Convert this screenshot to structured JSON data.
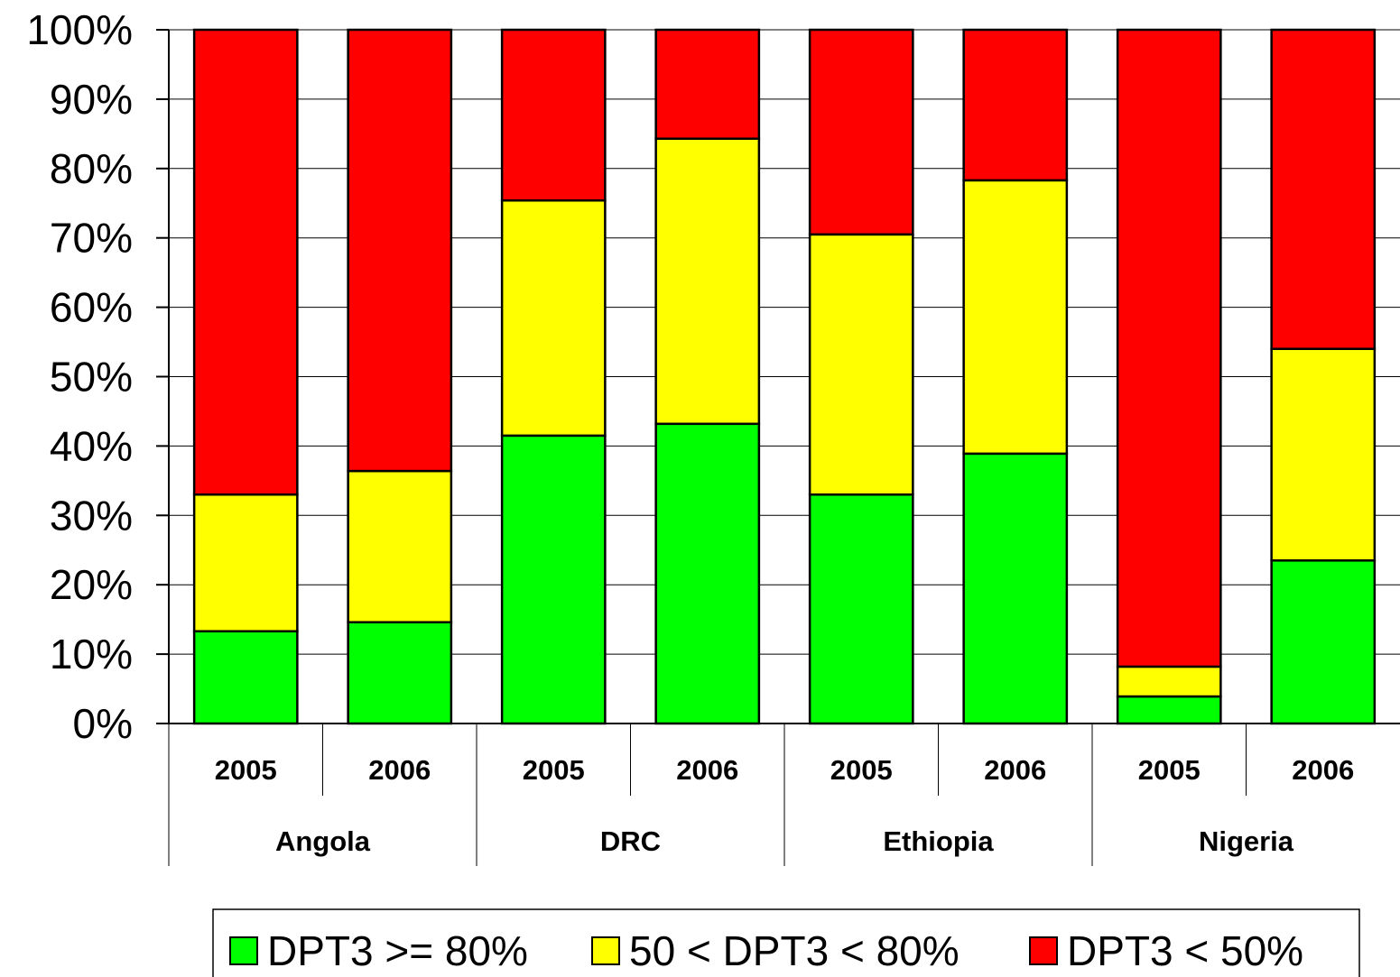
{
  "chart_data": {
    "type": "bar",
    "stacked": true,
    "percent_stacked": true,
    "groups": [
      {
        "name": "Angola",
        "categories": [
          "2005",
          "2006"
        ]
      },
      {
        "name": "DRC",
        "categories": [
          "2005",
          "2006"
        ]
      },
      {
        "name": "Ethiopia",
        "categories": [
          "2005",
          "2006"
        ]
      },
      {
        "name": "Nigeria",
        "categories": [
          "2005",
          "2006"
        ]
      }
    ],
    "categories": [
      "2005",
      "2006",
      "2005",
      "2006",
      "2005",
      "2006",
      "2005",
      "2006"
    ],
    "series": [
      {
        "name": "DPT3 >= 80%",
        "color": "#00ff00",
        "values": [
          13.3,
          14.6,
          41.5,
          43.2,
          33.0,
          38.9,
          3.9,
          23.5
        ]
      },
      {
        "name": "50 < DPT3 < 80%",
        "color": "#ffff00",
        "values": [
          19.7,
          21.8,
          33.9,
          41.1,
          37.5,
          39.4,
          4.3,
          30.5
        ]
      },
      {
        "name": "DPT3 < 50%",
        "color": "#ff0000",
        "values": [
          67.0,
          63.6,
          24.6,
          15.7,
          29.5,
          21.7,
          91.8,
          46.0
        ]
      }
    ],
    "yticks": [
      "0%",
      "10%",
      "20%",
      "30%",
      "40%",
      "50%",
      "60%",
      "70%",
      "80%",
      "90%",
      "100%"
    ],
    "ylim": [
      0,
      100
    ],
    "grid": true,
    "legend_position": "bottom"
  }
}
